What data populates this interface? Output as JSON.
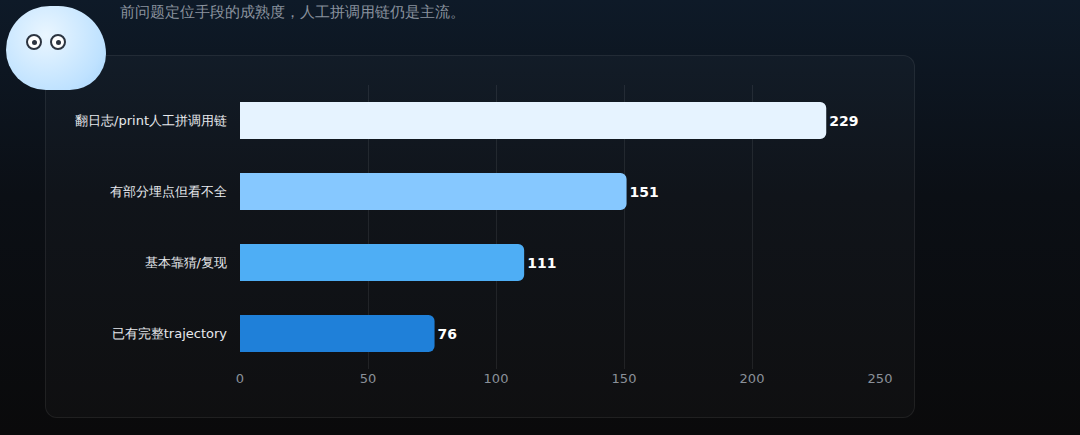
{
  "chart_data": {
    "type": "bar",
    "title": "前问题定位手段的成熟度，人工拼调用链仍是主流。",
    "orientation": "horizontal",
    "categories": [
      "翻日志/print人工拼调用链",
      "有部分埋点但看不全",
      "基本靠猜/复现",
      "已有完整trajectory"
    ],
    "values": [
      229,
      151,
      111,
      76
    ],
    "colors": [
      "#e6f3ff",
      "#86c8ff",
      "#4eaef5",
      "#1f80d9"
    ],
    "xlim": [
      0,
      250
    ],
    "xticks": [
      0,
      50,
      100,
      150,
      200,
      250
    ],
    "grid": true,
    "data_labels": true
  }
}
